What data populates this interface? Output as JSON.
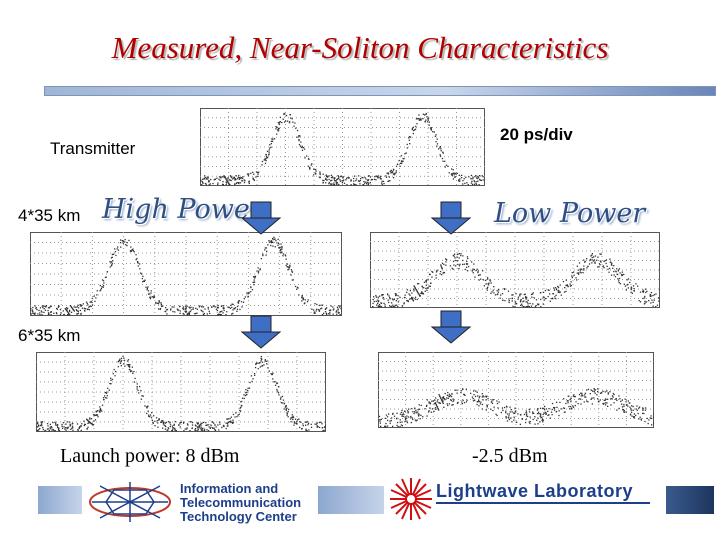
{
  "slide": {
    "title": "Measured, Near-Soliton Characteristics",
    "labels": {
      "transmitter": "Transmitter",
      "time_scale": "20 ps/div",
      "distance_1": "4*35 km",
      "distance_2": "6*35 km",
      "high_power": "High Power",
      "low_power": "Low Power",
      "launch_high": "Launch power: 8 dBm",
      "launch_low": "-2.5 dBm"
    },
    "footer": {
      "itc_logo_lines": [
        "Information and",
        "Telecommunication",
        "Technology Center"
      ],
      "lightwave_logo": "Lightwave Laboratory"
    },
    "colors": {
      "title": "#b00000",
      "arrow_fill": "#3f6fc4",
      "trace_grid": "#999999",
      "trace_dots": "#333333"
    },
    "icons": [
      "down-arrow-icon",
      "grid-logo-icon",
      "laser-burst-icon"
    ]
  }
}
